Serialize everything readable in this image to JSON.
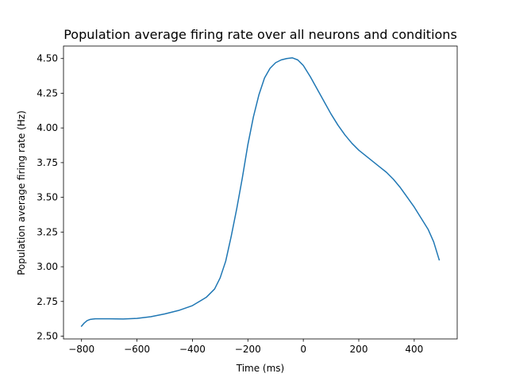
{
  "chart_data": {
    "type": "line",
    "title": "Population average firing rate over all neurons and conditions",
    "xlabel": "Time (ms)",
    "ylabel": "Population average firing rate (Hz)",
    "xlim": [
      -865,
      555
    ],
    "ylim": [
      2.48,
      4.59
    ],
    "xticks": [
      -800,
      -600,
      -400,
      -200,
      0,
      200,
      400
    ],
    "xtick_labels": [
      "−800",
      "−600",
      "−400",
      "−200",
      "0",
      "200",
      "400"
    ],
    "yticks": [
      2.5,
      2.75,
      3.0,
      3.25,
      3.5,
      3.75,
      4.0,
      4.25,
      4.5
    ],
    "ytick_labels": [
      "2.50",
      "2.75",
      "3.00",
      "3.25",
      "3.50",
      "3.75",
      "4.00",
      "4.25",
      "4.50"
    ],
    "grid": false,
    "series": [
      {
        "color": "#1f77b4",
        "x": [
          -800,
          -790,
          -780,
          -770,
          -760,
          -750,
          -700,
          -650,
          -600,
          -550,
          -500,
          -450,
          -400,
          -350,
          -320,
          -300,
          -280,
          -260,
          -240,
          -220,
          -200,
          -180,
          -160,
          -140,
          -120,
          -100,
          -80,
          -60,
          -40,
          -20,
          0,
          25,
          50,
          75,
          100,
          125,
          150,
          175,
          200,
          225,
          250,
          275,
          300,
          325,
          350,
          375,
          400,
          425,
          450,
          470,
          490
        ],
        "y": [
          2.572,
          2.595,
          2.612,
          2.62,
          2.623,
          2.625,
          2.625,
          2.624,
          2.628,
          2.64,
          2.66,
          2.685,
          2.72,
          2.78,
          2.84,
          2.92,
          3.04,
          3.22,
          3.42,
          3.64,
          3.88,
          4.08,
          4.24,
          4.36,
          4.43,
          4.47,
          4.49,
          4.5,
          4.505,
          4.49,
          4.45,
          4.37,
          4.28,
          4.19,
          4.1,
          4.02,
          3.95,
          3.89,
          3.84,
          3.8,
          3.76,
          3.72,
          3.68,
          3.63,
          3.57,
          3.5,
          3.43,
          3.35,
          3.27,
          3.18,
          3.05
        ]
      }
    ]
  }
}
